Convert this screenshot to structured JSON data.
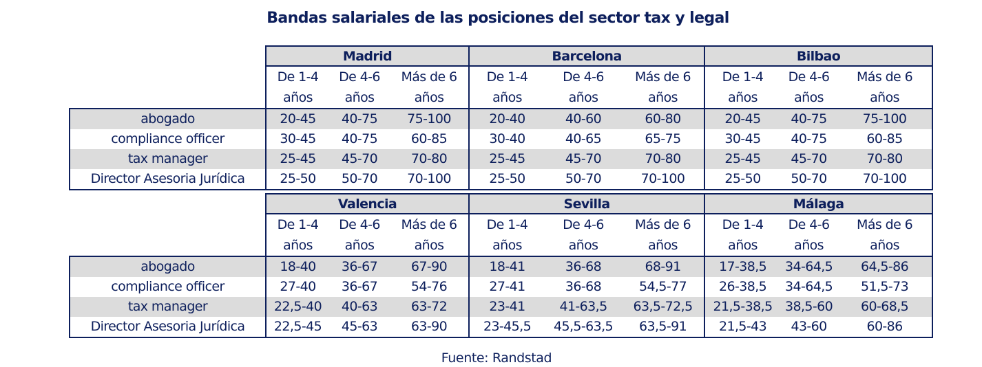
{
  "title": "Bandas salariales de las posiciones del sector tax y legal",
  "experience_labels": [
    {
      "line1": "De 1-4",
      "line2": "años"
    },
    {
      "line1": "De 4-6",
      "line2": "años"
    },
    {
      "line1": "Más de 6",
      "line2": "años"
    }
  ],
  "roles": [
    "abogado",
    "compliance officer",
    "tax manager",
    "Director Asesoria Jurídica"
  ],
  "tables": [
    {
      "cities": [
        {
          "name": "Madrid",
          "values": [
            [
              "20-45",
              "40-75",
              "75-100"
            ],
            [
              "30-45",
              "40-75",
              "60-85"
            ],
            [
              "25-45",
              "45-70",
              "70-80"
            ],
            [
              "25-50",
              "50-70",
              "70-100"
            ]
          ]
        },
        {
          "name": "Barcelona",
          "values": [
            [
              "20-40",
              "40-60",
              "60-80"
            ],
            [
              "30-40",
              "40-65",
              "65-75"
            ],
            [
              "25-45",
              "45-70",
              "70-80"
            ],
            [
              "25-50",
              "50-70",
              "70-100"
            ]
          ]
        },
        {
          "name": "Bilbao",
          "values": [
            [
              "20-45",
              "40-75",
              "75-100"
            ],
            [
              "30-45",
              "40-75",
              "60-85"
            ],
            [
              "25-45",
              "45-70",
              "70-80"
            ],
            [
              "25-50",
              "50-70",
              "70-100"
            ]
          ]
        }
      ]
    },
    {
      "cities": [
        {
          "name": "Valencia",
          "values": [
            [
              "18-40",
              "36-67",
              "67-90"
            ],
            [
              "27-40",
              "36-67",
              "54-76"
            ],
            [
              "22,5-40",
              "40-63",
              "63-72"
            ],
            [
              "22,5-45",
              "45-63",
              "63-90"
            ]
          ]
        },
        {
          "name": "Sevilla",
          "values": [
            [
              "18-41",
              "36-68",
              "68-91"
            ],
            [
              "27-41",
              "36-68",
              "54,5-77"
            ],
            [
              "23-41",
              "41-63,5",
              "63,5-72,5"
            ],
            [
              "23-45,5",
              "45,5-63,5",
              "63,5-91"
            ]
          ]
        },
        {
          "name": "Málaga",
          "values": [
            [
              "17-38,5",
              "34-64,5",
              "64,5-86"
            ],
            [
              "26-38,5",
              "34-64,5",
              "51,5-73"
            ],
            [
              "21,5-38,5",
              "38,5-60",
              "60-68,5"
            ],
            [
              "21,5-43",
              "43-60",
              "60-86"
            ]
          ]
        }
      ]
    }
  ],
  "source": "Fuente: Randstad",
  "colors": {
    "text": "#0d1f5c",
    "border": "#0d1f5c",
    "shade": "#dcdcdc",
    "background": "#ffffff"
  }
}
